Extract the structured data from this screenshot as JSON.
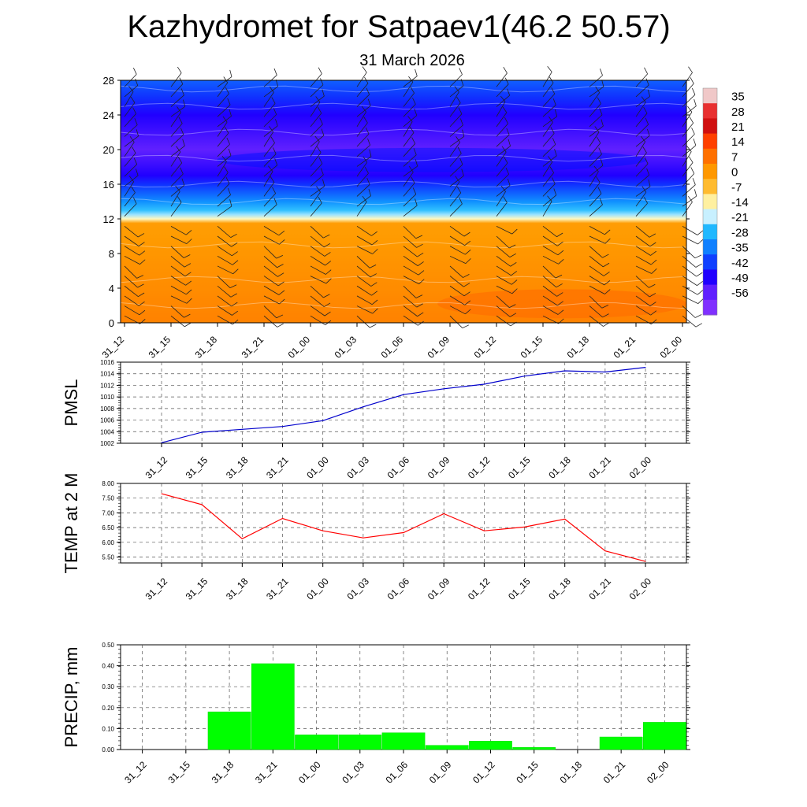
{
  "title": "Kazhydromet for Satpaev1(46.2 50.57)",
  "subtitle": "31 March 2026",
  "times": [
    "31_12",
    "31_15",
    "31_18",
    "31_21",
    "01_00",
    "01_03",
    "01_06",
    "01_09",
    "01_12",
    "01_15",
    "01_18",
    "01_21",
    "02_00"
  ],
  "chart_data": [
    {
      "type": "heatmap",
      "title": "",
      "xlabel": "",
      "ylabel": "",
      "x": [
        "31_12",
        "31_15",
        "31_18",
        "31_21",
        "01_00",
        "01_03",
        "01_06",
        "01_09",
        "01_12",
        "01_15",
        "01_18",
        "01_21",
        "02_00"
      ],
      "y_ticks": [
        0,
        4,
        8,
        12,
        16,
        20,
        24,
        28
      ],
      "ylim": [
        0,
        28
      ],
      "colorbar_labels": [
        "35",
        "28",
        "21",
        "14",
        "7",
        "0",
        "-7",
        "-14",
        "-21",
        "-28",
        "-35",
        "-42",
        "-49",
        "-56"
      ],
      "colorbar_colors": [
        "#f0c8c8",
        "#e83030",
        "#d01010",
        "#ff4000",
        "#ff7000",
        "#ff9800",
        "#ffbb30",
        "#fff0a0",
        "#c8f0ff",
        "#20b8ff",
        "#1080ff",
        "#1040ff",
        "#2000ff",
        "#6020ff",
        "#8030ff"
      ],
      "temperature_profile": [
        {
          "height": 0,
          "value": 12
        },
        {
          "height": 11.5,
          "value": 6
        },
        {
          "height": 12,
          "value": -14
        },
        {
          "height": 14,
          "value": -28
        },
        {
          "height": 17,
          "value": -49
        },
        {
          "height": 20,
          "value": -56
        },
        {
          "height": 24,
          "value": -49
        },
        {
          "height": 28,
          "value": -35
        }
      ],
      "wind_barbs": true,
      "grid": false
    },
    {
      "type": "line",
      "ylabel": "PMSL",
      "x": [
        "31_12",
        "31_15",
        "31_18",
        "31_21",
        "01_00",
        "01_03",
        "01_06",
        "01_09",
        "01_12",
        "01_15",
        "01_18",
        "01_21",
        "02_00"
      ],
      "series": [
        {
          "values": [
            1002.1,
            1003.9,
            1004.4,
            1004.9,
            1005.9,
            1008.3,
            1010.4,
            1011.4,
            1012.2,
            1013.6,
            1014.5,
            1014.3,
            1015.1
          ],
          "color": "#0000cc"
        }
      ],
      "y_ticks": [
        "1002",
        "1004",
        "1006",
        "1008",
        "1010",
        "1012",
        "1014",
        "1016"
      ],
      "ylim": [
        1002,
        1016
      ],
      "grid": true
    },
    {
      "type": "line",
      "ylabel": "TEMP at 2 M",
      "x": [
        "31_12",
        "31_15",
        "31_18",
        "31_21",
        "01_00",
        "01_03",
        "01_06",
        "01_09",
        "01_12",
        "01_15",
        "01_18",
        "01_21",
        "02_00"
      ],
      "series": [
        {
          "values": [
            7.65,
            7.28,
            6.12,
            6.81,
            6.39,
            6.15,
            6.33,
            6.97,
            6.39,
            6.52,
            6.79,
            5.71,
            5.35
          ],
          "color": "#ff0000"
        }
      ],
      "y_ticks": [
        "5.50",
        "6.00",
        "6.50",
        "7.00",
        "7.50",
        "8.00"
      ],
      "ylim": [
        5.3,
        8.0
      ],
      "grid": true
    },
    {
      "type": "bar",
      "ylabel": "PRECIP, mm",
      "categories": [
        "31_12",
        "31_15",
        "31_18",
        "31_21",
        "01_00",
        "01_03",
        "01_06",
        "01_09",
        "01_12",
        "01_15",
        "01_18",
        "01_21",
        "02_00"
      ],
      "values": [
        0,
        0,
        0.18,
        0.41,
        0.07,
        0.07,
        0.08,
        0.02,
        0.04,
        0.01,
        0,
        0.06,
        0.13
      ],
      "color": "#00ff00",
      "y_ticks": [
        "0.00",
        "0.10",
        "0.20",
        "0.30",
        "0.40",
        "0.50"
      ],
      "ylim": [
        0,
        0.5
      ],
      "grid": true
    }
  ]
}
